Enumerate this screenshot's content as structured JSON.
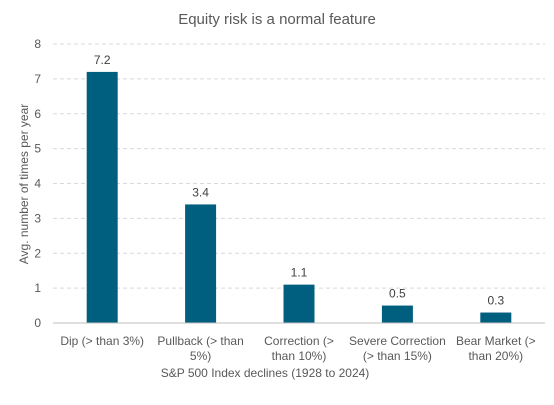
{
  "chart_data": {
    "type": "bar",
    "title": "Equity risk is a normal feature",
    "xlabel": "S&P 500 Index declines (1928 to 2024)",
    "ylabel": "Avg. number of times per year",
    "categories": [
      [
        "Dip (> than 3%)"
      ],
      [
        "Pullback (> than",
        "5%)"
      ],
      [
        "Correction (>",
        "than 10%)"
      ],
      [
        "Severe Correction",
        "(> than 15%)"
      ],
      [
        "Bear Market (>",
        "than 20%)"
      ]
    ],
    "values": [
      7.2,
      3.4,
      1.1,
      0.5,
      0.3
    ],
    "data_labels": [
      "7.2",
      "3.4",
      "1.1",
      "0.5",
      "0.3"
    ],
    "ylim": [
      0,
      8
    ],
    "yticks": [
      0,
      1,
      2,
      3,
      4,
      5,
      6,
      7,
      8
    ],
    "grid": true,
    "legend": "none",
    "colors": {
      "bar": "#005f7f",
      "grid": "#d9d9d9",
      "text": "#595959"
    }
  }
}
